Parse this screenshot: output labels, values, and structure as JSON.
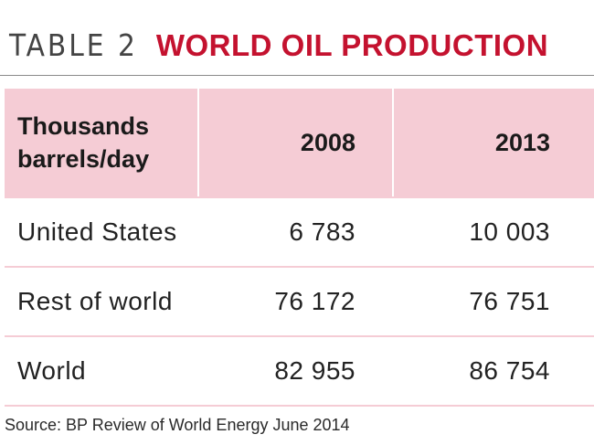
{
  "title": {
    "prefix": "TABLE 2",
    "main": "WORLD OIL PRODUCTION"
  },
  "colors": {
    "accent": "#c4122f",
    "header_fill": "#f5ccd5",
    "rule": "#8a8a8a"
  },
  "chart_data": {
    "type": "table",
    "title": "WORLD OIL PRODUCTION",
    "columns": [
      "Thousands barrels/day",
      "2008",
      "2013"
    ],
    "header": {
      "unit_line1": "Thousands",
      "unit_line2": "barrels/day",
      "year1": "2008",
      "year2": "2013"
    },
    "rows": [
      {
        "label": "United States",
        "v2008": "6 783",
        "v2013": "10 003"
      },
      {
        "label": "Rest of world",
        "v2008": "76 172",
        "v2013": "76 751"
      },
      {
        "label": "World",
        "v2008": "82 955",
        "v2013": "86 754"
      }
    ],
    "values": {
      "2008": [
        6783,
        76172,
        82955
      ],
      "2013": [
        10003,
        76751,
        86754
      ]
    }
  },
  "source": "Source: BP Review of World Energy June 2014"
}
